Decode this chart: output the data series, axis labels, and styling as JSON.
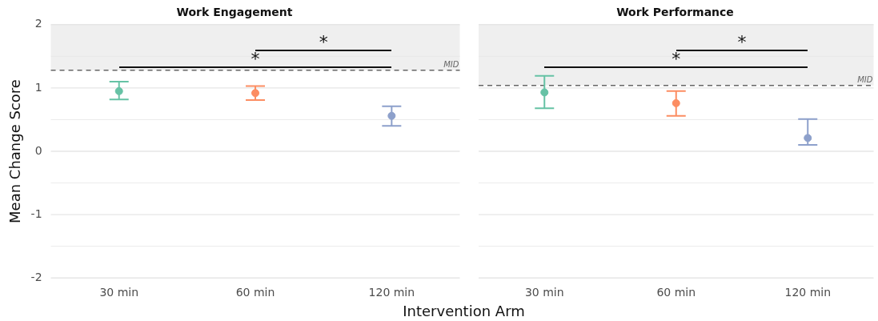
{
  "chart_data": [
    {
      "type": "scatter",
      "title": "Work Engagement",
      "ylabel": "Mean Change Score",
      "xlabel": "Intervention Arm",
      "categories": [
        "30 min",
        "60 min",
        "120 min"
      ],
      "values": [
        0.95,
        0.92,
        0.56
      ],
      "colors": [
        "#66c2a5",
        "#fc8d62",
        "#8da0cb"
      ],
      "errors": [
        [
          0.82,
          1.1
        ],
        [
          0.81,
          1.03
        ],
        [
          0.4,
          0.71
        ]
      ],
      "marker": "circle",
      "ylim": [
        -2,
        2
      ],
      "yticks": [
        -2,
        {
          "value": -1.5,
          "label": null
        },
        -1,
        {
          "value": -0.5,
          "label": null
        },
        0,
        {
          "value": 0.5,
          "label": null
        },
        1,
        {
          "value": 1.5,
          "label": null
        },
        2
      ],
      "grid": "y",
      "ref_lines": [
        {
          "axis": "y",
          "value": 1.28,
          "label": "MID",
          "color": "#666666",
          "line_style": "dashed"
        }
      ],
      "bands": [
        {
          "axis": "y",
          "from": 1.28,
          "to": 2,
          "color": "#efefef"
        }
      ],
      "annotations": [
        "*",
        "*"
      ]
    },
    {
      "type": "scatter",
      "title": "Work Performance",
      "categories": [
        "30 min",
        "60 min",
        "120 min"
      ],
      "values": [
        0.93,
        0.76,
        0.21
      ],
      "colors": [
        "#66c2a5",
        "#fc8d62",
        "#8da0cb"
      ],
      "errors": [
        [
          0.68,
          1.19
        ],
        [
          0.56,
          0.95
        ],
        [
          0.1,
          0.51
        ]
      ],
      "marker": "circle",
      "ylim": [
        -2,
        2
      ],
      "yticks": [
        -2,
        {
          "value": -1.5,
          "label": null
        },
        -1,
        {
          "value": -0.5,
          "label": null
        },
        0,
        {
          "value": 0.5,
          "label": null
        },
        1,
        {
          "value": 1.5,
          "label": null
        },
        2
      ],
      "grid": "y",
      "tick_labels": "x",
      "ref_lines": [
        {
          "axis": "y",
          "value": 1.04,
          "label": "MID",
          "color": "#666666",
          "line_style": "dashed"
        }
      ],
      "bands": [
        {
          "axis": "y",
          "from": 1.04,
          "to": 2,
          "color": "#efefef"
        }
      ],
      "annotations": [
        "*",
        "*"
      ]
    }
  ]
}
